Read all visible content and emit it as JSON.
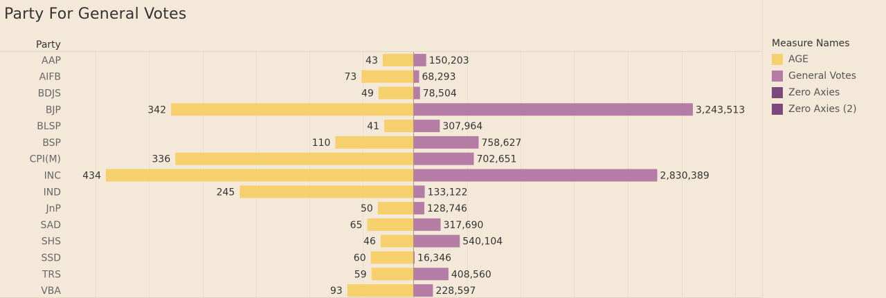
{
  "title": "Party For General Votes",
  "row_header": "Party",
  "legend": {
    "title": "Measure Names",
    "items": [
      {
        "label": "AGE",
        "color": "#f5d06c"
      },
      {
        "label": "General Votes",
        "color": "#b57da6"
      },
      {
        "label": "Zero Axies",
        "color": "#7b4a7a"
      },
      {
        "label": "Zero Axies (2)",
        "color": "#7b4a7a"
      }
    ]
  },
  "chart_data": {
    "type": "bar",
    "orientation": "horizontal-diverging",
    "title": "Party For General Votes",
    "categories": [
      "AAP",
      "AIFB",
      "BDJS",
      "BJP",
      "BLSP",
      "BSP",
      "CPI(M)",
      "INC",
      "IND",
      "JnP",
      "SAD",
      "SHS",
      "SSD",
      "TRS",
      "VBA"
    ],
    "series": [
      {
        "name": "AGE",
        "color": "#f5d06c",
        "direction": "left",
        "values": [
          43,
          73,
          49,
          342,
          41,
          110,
          336,
          434,
          245,
          50,
          65,
          46,
          60,
          59,
          93
        ],
        "labels": [
          "43",
          "73",
          "49",
          "342",
          "41",
          "110",
          "336",
          "434",
          "245",
          "50",
          "65",
          "46",
          "60",
          "59",
          "93"
        ]
      },
      {
        "name": "General Votes",
        "color": "#b57da6",
        "direction": "right",
        "values": [
          150203,
          68293,
          78504,
          3243513,
          307964,
          758627,
          702651,
          2830389,
          133122,
          128746,
          317690,
          540104,
          16346,
          408560,
          228597
        ],
        "labels": [
          "150,203",
          "68,293",
          "78,504",
          "3,243,513",
          "307,964",
          "758,627",
          "702,651",
          "2,830,389",
          "133,122",
          "128,746",
          "317,690",
          "540,104",
          "16,346",
          "408,560",
          "228,597"
        ]
      }
    ],
    "legend_position": "right",
    "grid": true
  }
}
